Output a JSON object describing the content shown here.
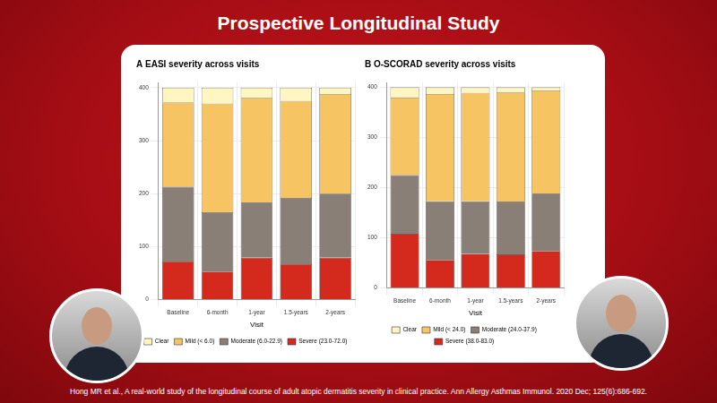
{
  "title": "Prospective Longitudinal Study",
  "citation": "Hong MR et al., A real-world study of the longitudinal course of adult atopic dermatitis severity in clinical practice. Ann Allergy Asthmas Immunol. 2020 Dec; 125(6):686-692.",
  "chart_data": [
    {
      "type": "bar",
      "title": "A EASI severity across visits",
      "x_label": "Visit",
      "stacked": true,
      "grid": true,
      "legend": "bottom",
      "categories": [
        "Baseline",
        "6-month",
        "1-year",
        "1.5-years",
        "2-years"
      ],
      "series": [
        {
          "name": "Severe (23.0-72.0)",
          "color": "#d42a1e",
          "values": [
            72,
            53,
            79,
            67,
            79
          ]
        },
        {
          "name": "Moderate (6.0-22.9)",
          "color": "#8a7f76",
          "values": [
            141,
            112,
            104,
            125,
            121
          ]
        },
        {
          "name": "Mild (< 6.0)",
          "color": "#f6c463",
          "values": [
            159,
            205,
            198,
            183,
            188
          ]
        },
        {
          "name": "Clear",
          "color": "#fff6c2",
          "values": [
            28,
            30,
            19,
            25,
            12
          ]
        }
      ],
      "ylim": [
        0,
        410
      ],
      "yticks": [
        0,
        100,
        200,
        300,
        400
      ]
    },
    {
      "type": "bar",
      "title": "B O-SCORAD severity across visits",
      "x_label": "Visit",
      "stacked": true,
      "grid": true,
      "legend": "bottom",
      "categories": [
        "Baseline",
        "6-month",
        "1-year",
        "1.5-years",
        "2-years"
      ],
      "series": [
        {
          "name": "Severe (38.0-83.0)",
          "color": "#d42a1e",
          "values": [
            108,
            56,
            68,
            67,
            74
          ]
        },
        {
          "name": "Moderate (24.0-37.9)",
          "color": "#8a7f76",
          "values": [
            117,
            117,
            105,
            105,
            114
          ]
        },
        {
          "name": "Mild (< 24.0)",
          "color": "#f6c463",
          "values": [
            155,
            214,
            216,
            218,
            206
          ]
        },
        {
          "name": "Clear",
          "color": "#fff6c2",
          "values": [
            20,
            13,
            11,
            10,
            6
          ]
        }
      ],
      "ylim": [
        0,
        410
      ],
      "yticks": [
        0,
        100,
        200,
        300,
        400
      ]
    }
  ]
}
